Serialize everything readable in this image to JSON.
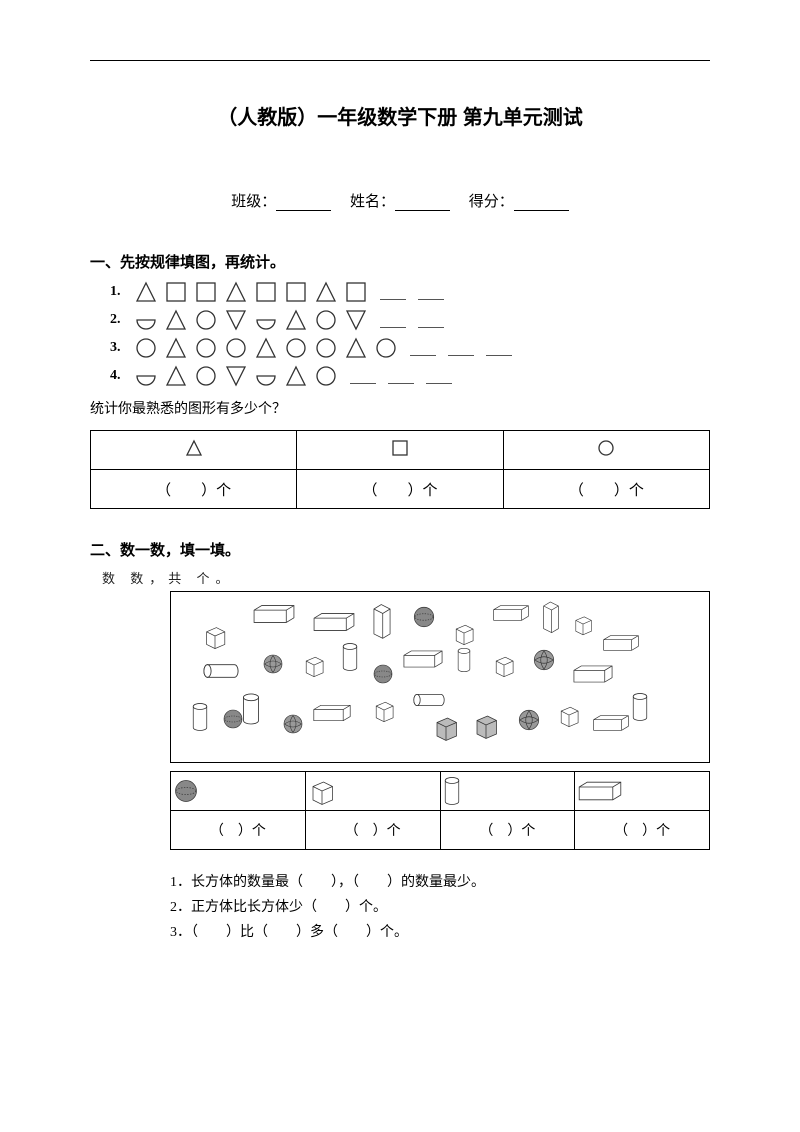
{
  "title": "（人教版）一年级数学下册 第九单元测试",
  "info": {
    "class_label": "班级：",
    "name_label": "姓名：",
    "score_label": "得分："
  },
  "section1": {
    "title": "一、先按规律填图，再统计。",
    "rows": [
      {
        "num": "1.",
        "shapes": [
          "triangle",
          "square",
          "square",
          "triangle",
          "square",
          "square",
          "triangle",
          "square"
        ],
        "blanks": 2
      },
      {
        "num": "2.",
        "shapes": [
          "semicircle",
          "triangle",
          "circle",
          "invtriangle",
          "semicircle",
          "triangle",
          "circle",
          "invtriangle"
        ],
        "blanks": 2
      },
      {
        "num": "3.",
        "shapes": [
          "circle",
          "triangle",
          "circle",
          "circle",
          "triangle",
          "circle",
          "circle",
          "triangle",
          "circle"
        ],
        "blanks": 3
      },
      {
        "num": "4.",
        "shapes": [
          "semicircle",
          "triangle",
          "circle",
          "invtriangle",
          "semicircle",
          "triangle",
          "circle"
        ],
        "blanks": 3
      }
    ],
    "subtext": "统计你最熟悉的图形有多少个？",
    "count_label": "（　　）个"
  },
  "section2": {
    "title": "二、数一数，填一填。",
    "scribble": "数 数，共 个。",
    "count_label_short": "（　）个",
    "q1": "1．长方体的数量最（　　），（　　）的数量最少。",
    "q2": "2．正方体比长方体少（　　）个。",
    "q3": "3．（　　）比（　　）多（　　）个。"
  },
  "colors": {
    "line": "#333333",
    "fill": "#ffffff",
    "shade": "#aaaaaa"
  }
}
